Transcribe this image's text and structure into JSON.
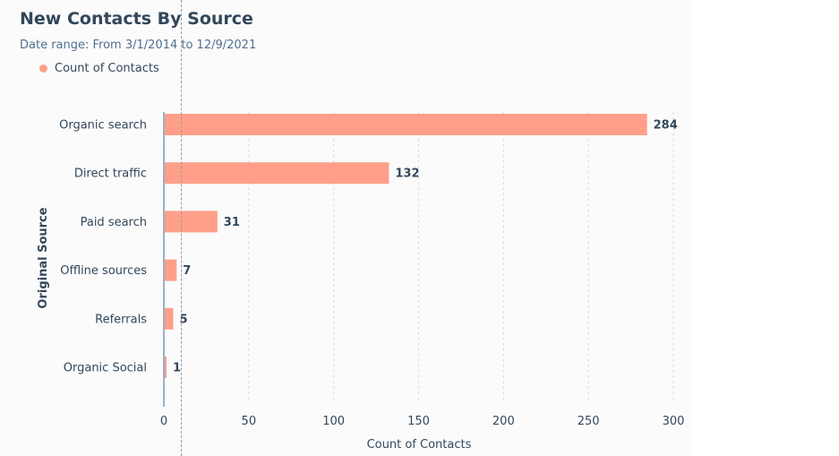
{
  "chart_data": {
    "type": "bar",
    "orientation": "horizontal",
    "title": "New Contacts By Source",
    "subtitle": "Date range: From 3/1/2014 to 12/9/2021",
    "legend": [
      "Count of Contacts"
    ],
    "legend_placement": "top-left",
    "categories": [
      "Organic search",
      "Direct traffic",
      "Paid search",
      "Offline sources",
      "Referrals",
      "Organic Social"
    ],
    "series": [
      {
        "name": "Count of Contacts",
        "values": [
          284,
          132,
          31,
          7,
          5,
          1
        ]
      }
    ],
    "xlabel": "Count of Contacts",
    "ylabel": "Original Source",
    "xlim": [
      0,
      300
    ],
    "xticks": [
      0,
      50,
      100,
      150,
      200,
      250,
      300
    ],
    "grid": true,
    "bar_color": "#ff9f8a",
    "title_color": "#33475b"
  }
}
